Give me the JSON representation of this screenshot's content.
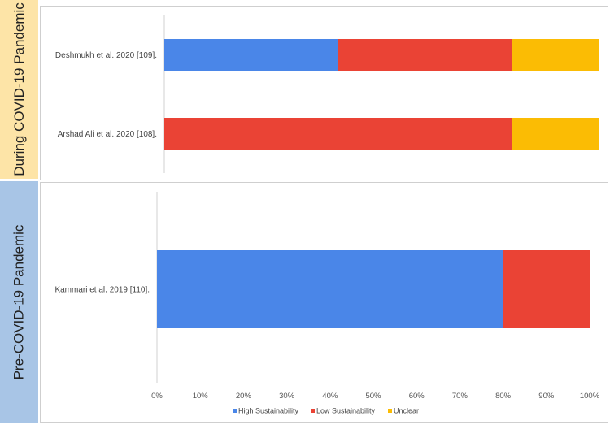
{
  "chart_data": [
    {
      "type": "bar",
      "orientation": "horizontal",
      "stacked": true,
      "panel_label": "During COVID-19 Pandemic",
      "categories": [
        "Deshmukh et al. 2020 [109].",
        "Arshad Ali et al. 2020 [108]."
      ],
      "series": [
        {
          "name": "High Sustainability",
          "values": [
            40,
            0
          ]
        },
        {
          "name": "Low Sustainability",
          "values": [
            40,
            80
          ]
        },
        {
          "name": "Unclear",
          "values": [
            20,
            20
          ]
        }
      ]
    },
    {
      "type": "bar",
      "orientation": "horizontal",
      "stacked": true,
      "panel_label": "Pre-COVID-19 Pandemic",
      "categories": [
        "Kammari et al. 2019 [110]."
      ],
      "series": [
        {
          "name": "High Sustainability",
          "values": [
            80
          ]
        },
        {
          "name": "Low Sustainability",
          "values": [
            20
          ]
        },
        {
          "name": "Unclear",
          "values": [
            0
          ]
        }
      ],
      "xlim": [
        0,
        100
      ],
      "x_ticks": [
        "0%",
        "10%",
        "20%",
        "30%",
        "40%",
        "50%",
        "60%",
        "70%",
        "80%",
        "90%",
        "100%"
      ]
    }
  ],
  "colors": {
    "High Sustainability": "#4a86e8",
    "Low Sustainability": "#ea4335",
    "Unclear": "#fbbc04"
  },
  "legend": {
    "placement": "bottom",
    "items": [
      "High Sustainability",
      "Low Sustainability",
      "Unclear"
    ]
  }
}
